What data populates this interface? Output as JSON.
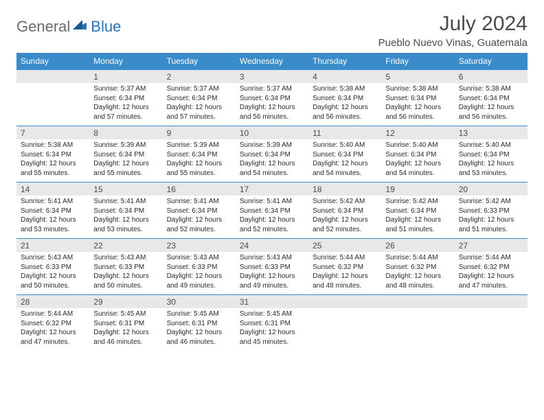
{
  "logo": {
    "general": "General",
    "blue": "Blue"
  },
  "title": "July 2024",
  "location": "Pueblo Nuevo Vinas, Guatemala",
  "colors": {
    "header_bg": "#3a8bc9",
    "header_text": "#ffffff",
    "daynum_bg": "#e8e8e8",
    "border": "#3a8bc9",
    "body_text": "#2a2a2a",
    "title_text": "#4a4a4a",
    "logo_gray": "#6a6a6a",
    "logo_blue": "#2d72b8"
  },
  "day_headers": [
    "Sunday",
    "Monday",
    "Tuesday",
    "Wednesday",
    "Thursday",
    "Friday",
    "Saturday"
  ],
  "weeks": [
    {
      "nums": [
        "",
        "1",
        "2",
        "3",
        "4",
        "5",
        "6"
      ],
      "cells": [
        null,
        {
          "sr": "Sunrise: 5:37 AM",
          "ss": "Sunset: 6:34 PM",
          "d1": "Daylight: 12 hours",
          "d2": "and 57 minutes."
        },
        {
          "sr": "Sunrise: 5:37 AM",
          "ss": "Sunset: 6:34 PM",
          "d1": "Daylight: 12 hours",
          "d2": "and 57 minutes."
        },
        {
          "sr": "Sunrise: 5:37 AM",
          "ss": "Sunset: 6:34 PM",
          "d1": "Daylight: 12 hours",
          "d2": "and 56 minutes."
        },
        {
          "sr": "Sunrise: 5:38 AM",
          "ss": "Sunset: 6:34 PM",
          "d1": "Daylight: 12 hours",
          "d2": "and 56 minutes."
        },
        {
          "sr": "Sunrise: 5:38 AM",
          "ss": "Sunset: 6:34 PM",
          "d1": "Daylight: 12 hours",
          "d2": "and 56 minutes."
        },
        {
          "sr": "Sunrise: 5:38 AM",
          "ss": "Sunset: 6:34 PM",
          "d1": "Daylight: 12 hours",
          "d2": "and 56 minutes."
        }
      ]
    },
    {
      "nums": [
        "7",
        "8",
        "9",
        "10",
        "11",
        "12",
        "13"
      ],
      "cells": [
        {
          "sr": "Sunrise: 5:38 AM",
          "ss": "Sunset: 6:34 PM",
          "d1": "Daylight: 12 hours",
          "d2": "and 55 minutes."
        },
        {
          "sr": "Sunrise: 5:39 AM",
          "ss": "Sunset: 6:34 PM",
          "d1": "Daylight: 12 hours",
          "d2": "and 55 minutes."
        },
        {
          "sr": "Sunrise: 5:39 AM",
          "ss": "Sunset: 6:34 PM",
          "d1": "Daylight: 12 hours",
          "d2": "and 55 minutes."
        },
        {
          "sr": "Sunrise: 5:39 AM",
          "ss": "Sunset: 6:34 PM",
          "d1": "Daylight: 12 hours",
          "d2": "and 54 minutes."
        },
        {
          "sr": "Sunrise: 5:40 AM",
          "ss": "Sunset: 6:34 PM",
          "d1": "Daylight: 12 hours",
          "d2": "and 54 minutes."
        },
        {
          "sr": "Sunrise: 5:40 AM",
          "ss": "Sunset: 6:34 PM",
          "d1": "Daylight: 12 hours",
          "d2": "and 54 minutes."
        },
        {
          "sr": "Sunrise: 5:40 AM",
          "ss": "Sunset: 6:34 PM",
          "d1": "Daylight: 12 hours",
          "d2": "and 53 minutes."
        }
      ]
    },
    {
      "nums": [
        "14",
        "15",
        "16",
        "17",
        "18",
        "19",
        "20"
      ],
      "cells": [
        {
          "sr": "Sunrise: 5:41 AM",
          "ss": "Sunset: 6:34 PM",
          "d1": "Daylight: 12 hours",
          "d2": "and 53 minutes."
        },
        {
          "sr": "Sunrise: 5:41 AM",
          "ss": "Sunset: 6:34 PM",
          "d1": "Daylight: 12 hours",
          "d2": "and 53 minutes."
        },
        {
          "sr": "Sunrise: 5:41 AM",
          "ss": "Sunset: 6:34 PM",
          "d1": "Daylight: 12 hours",
          "d2": "and 52 minutes."
        },
        {
          "sr": "Sunrise: 5:41 AM",
          "ss": "Sunset: 6:34 PM",
          "d1": "Daylight: 12 hours",
          "d2": "and 52 minutes."
        },
        {
          "sr": "Sunrise: 5:42 AM",
          "ss": "Sunset: 6:34 PM",
          "d1": "Daylight: 12 hours",
          "d2": "and 52 minutes."
        },
        {
          "sr": "Sunrise: 5:42 AM",
          "ss": "Sunset: 6:34 PM",
          "d1": "Daylight: 12 hours",
          "d2": "and 51 minutes."
        },
        {
          "sr": "Sunrise: 5:42 AM",
          "ss": "Sunset: 6:33 PM",
          "d1": "Daylight: 12 hours",
          "d2": "and 51 minutes."
        }
      ]
    },
    {
      "nums": [
        "21",
        "22",
        "23",
        "24",
        "25",
        "26",
        "27"
      ],
      "cells": [
        {
          "sr": "Sunrise: 5:43 AM",
          "ss": "Sunset: 6:33 PM",
          "d1": "Daylight: 12 hours",
          "d2": "and 50 minutes."
        },
        {
          "sr": "Sunrise: 5:43 AM",
          "ss": "Sunset: 6:33 PM",
          "d1": "Daylight: 12 hours",
          "d2": "and 50 minutes."
        },
        {
          "sr": "Sunrise: 5:43 AM",
          "ss": "Sunset: 6:33 PM",
          "d1": "Daylight: 12 hours",
          "d2": "and 49 minutes."
        },
        {
          "sr": "Sunrise: 5:43 AM",
          "ss": "Sunset: 6:33 PM",
          "d1": "Daylight: 12 hours",
          "d2": "and 49 minutes."
        },
        {
          "sr": "Sunrise: 5:44 AM",
          "ss": "Sunset: 6:32 PM",
          "d1": "Daylight: 12 hours",
          "d2": "and 48 minutes."
        },
        {
          "sr": "Sunrise: 5:44 AM",
          "ss": "Sunset: 6:32 PM",
          "d1": "Daylight: 12 hours",
          "d2": "and 48 minutes."
        },
        {
          "sr": "Sunrise: 5:44 AM",
          "ss": "Sunset: 6:32 PM",
          "d1": "Daylight: 12 hours",
          "d2": "and 47 minutes."
        }
      ]
    },
    {
      "nums": [
        "28",
        "29",
        "30",
        "31",
        "",
        "",
        ""
      ],
      "cells": [
        {
          "sr": "Sunrise: 5:44 AM",
          "ss": "Sunset: 6:32 PM",
          "d1": "Daylight: 12 hours",
          "d2": "and 47 minutes."
        },
        {
          "sr": "Sunrise: 5:45 AM",
          "ss": "Sunset: 6:31 PM",
          "d1": "Daylight: 12 hours",
          "d2": "and 46 minutes."
        },
        {
          "sr": "Sunrise: 5:45 AM",
          "ss": "Sunset: 6:31 PM",
          "d1": "Daylight: 12 hours",
          "d2": "and 46 minutes."
        },
        {
          "sr": "Sunrise: 5:45 AM",
          "ss": "Sunset: 6:31 PM",
          "d1": "Daylight: 12 hours",
          "d2": "and 45 minutes."
        },
        null,
        null,
        null
      ]
    }
  ]
}
